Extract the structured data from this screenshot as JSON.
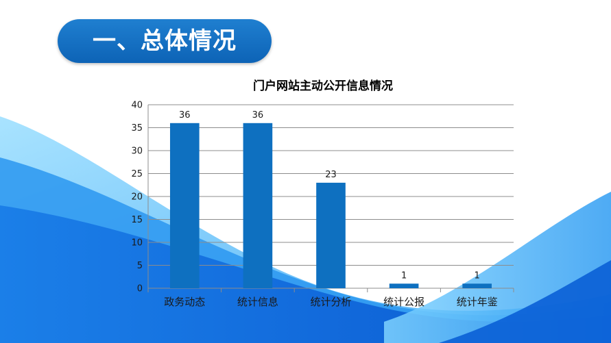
{
  "page": {
    "heading": "一、总体情况"
  },
  "colors": {
    "accent": "#0f6ec0",
    "bar": "#0e70c0",
    "wave_light": "#6cc8ff",
    "wave_mid": "#2a97f0",
    "wave_deep": "#0a5fd6"
  },
  "chart_data": {
    "type": "bar",
    "title": "门户网站主动公开信息情况",
    "categories": [
      "政务动态",
      "统计信息",
      "统计分析",
      "统计公报",
      "统计年鉴"
    ],
    "values": [
      36,
      36,
      23,
      1,
      1
    ],
    "data_labels": [
      "36",
      "36",
      "23",
      "1",
      "1"
    ],
    "ylim": [
      0,
      40
    ],
    "yticks": [
      0,
      5,
      10,
      15,
      20,
      25,
      30,
      35,
      40
    ],
    "ytick_labels": [
      "0",
      "5",
      "10",
      "15",
      "20",
      "25",
      "30",
      "35",
      "40"
    ],
    "xlabel": "",
    "ylabel": "",
    "grid": true,
    "legend": "none"
  }
}
